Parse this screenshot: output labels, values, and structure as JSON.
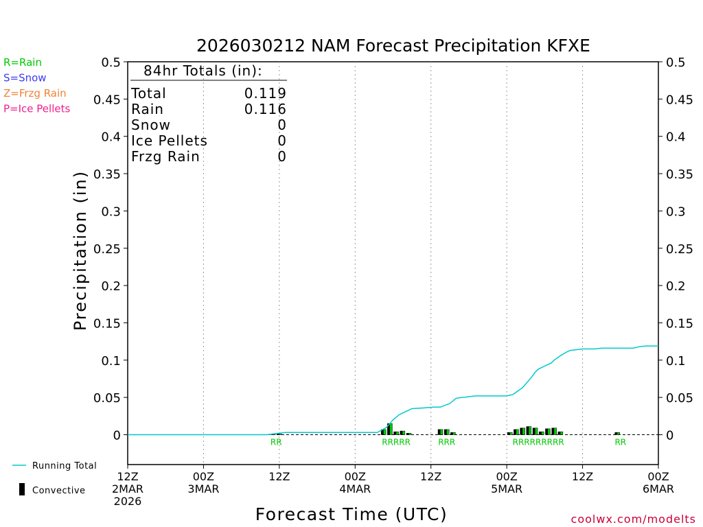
{
  "chart_data": {
    "type": "bar",
    "title": "2026030212 NAM Forecast Precipitation KFXE",
    "xlabel": "Forecast Time (UTC)",
    "ylabel": "Precipitation (in)",
    "ylim": [
      -0.04,
      0.5
    ],
    "xlim_hours": [
      0,
      84
    ],
    "yticks": [
      "0",
      "0.05",
      "0.1",
      "0.15",
      "0.2",
      "0.25",
      "0.3",
      "0.35",
      "0.4",
      "0.45",
      "0.5"
    ],
    "ytick_values": [
      0,
      0.05,
      0.1,
      0.15,
      0.2,
      0.25,
      0.3,
      0.35,
      0.4,
      0.45,
      0.5
    ],
    "xticks": [
      {
        "hour": 0,
        "lines": [
          "12Z",
          "2MAR",
          "2026"
        ]
      },
      {
        "hour": 12,
        "lines": [
          "00Z",
          "3MAR"
        ]
      },
      {
        "hour": 24,
        "lines": [
          "12Z"
        ]
      },
      {
        "hour": 36,
        "lines": [
          "00Z",
          "4MAR"
        ]
      },
      {
        "hour": 48,
        "lines": [
          "12Z"
        ]
      },
      {
        "hour": 60,
        "lines": [
          "00Z",
          "5MAR"
        ]
      },
      {
        "hour": 72,
        "lines": [
          "12Z"
        ]
      },
      {
        "hour": 84,
        "lines": [
          "00Z",
          "6MAR"
        ]
      }
    ],
    "gridlines_hours": [
      12,
      24,
      36,
      48,
      60,
      72
    ],
    "running_total": {
      "name": "Running Total",
      "color": "#00c8c8",
      "x": [
        0,
        22,
        23,
        24,
        25,
        38,
        39.5,
        41,
        42,
        43,
        44,
        45,
        47,
        48.5,
        49.5,
        51,
        52,
        55,
        58,
        60,
        61,
        62,
        62.5,
        63,
        63.5,
        64,
        64.5,
        65,
        66,
        66.5,
        67,
        67.5,
        68.5,
        69.5,
        70,
        71,
        72,
        74,
        75,
        76,
        77,
        78,
        79,
        80,
        81,
        82,
        83,
        84
      ],
      "values": [
        0,
        0,
        0.001,
        0.002,
        0.003,
        0.003,
        0.003,
        0.01,
        0.02,
        0.027,
        0.031,
        0.035,
        0.036,
        0.037,
        0.037,
        0.042,
        0.049,
        0.052,
        0.052,
        0.052,
        0.054,
        0.06,
        0.063,
        0.068,
        0.073,
        0.078,
        0.084,
        0.088,
        0.092,
        0.094,
        0.096,
        0.1,
        0.106,
        0.111,
        0.113,
        0.114,
        0.115,
        0.115,
        0.116,
        0.116,
        0.116,
        0.116,
        0.116,
        0.116,
        0.118,
        0.119,
        0.119,
        0.119
      ]
    },
    "convective": {
      "name": "Convective",
      "color": "#000000",
      "hours": [
        23,
        24,
        40.5,
        41.5,
        42.5,
        43.5,
        44.5,
        49.5,
        50.5,
        51.5,
        60.5,
        61.5,
        62.5,
        63.5,
        64.5,
        65.5,
        66.5,
        67.5,
        68.5,
        69.5,
        77.5
      ],
      "values": [
        0.001,
        0.001,
        0.007,
        0.015,
        0.004,
        0.005,
        0.002,
        0.007,
        0.007,
        0.003,
        0.003,
        0.007,
        0.009,
        0.011,
        0.009,
        0.004,
        0.008,
        0.009,
        0.004,
        0,
        0.003
      ],
      "fill_color": "#00c800"
    },
    "ptype_markers": {
      "color": "#00c800",
      "groups": [
        {
          "hour": 23.5,
          "label": "RR"
        },
        {
          "hour": 42.5,
          "label": "RRRRR"
        },
        {
          "hour": 50.5,
          "label": "RRR"
        },
        {
          "hour": 65.0,
          "label": "RRRRRRRRR"
        },
        {
          "hour": 78.0,
          "label": "RR"
        }
      ]
    },
    "totals_box": {
      "header": "84hr Totals (in):",
      "rows": [
        {
          "label": "Total",
          "value": "0.119"
        },
        {
          "label": "Rain",
          "value": "0.116"
        },
        {
          "label": "Snow",
          "value": "0"
        },
        {
          "label": "Ice Pellets",
          "value": "0"
        },
        {
          "label": "Frzg Rain",
          "value": "0"
        }
      ]
    },
    "legend_ptypes": [
      {
        "text": "R=Rain",
        "color": "#00c800"
      },
      {
        "text": "S=Snow",
        "color": "#3c3cf0"
      },
      {
        "text": "Z=Frzg Rain",
        "color": "#f08232"
      },
      {
        "text": "P=Ice Pellets",
        "color": "#f01e8c"
      }
    ],
    "legend_bottom": [
      {
        "text": "Running Total",
        "kind": "line",
        "color": "#00c8c8"
      },
      {
        "text": "Convective",
        "kind": "bar",
        "color": "#000000"
      }
    ],
    "credit": "coolwx.com/modelts",
    "credit_color": "#c8003c"
  }
}
